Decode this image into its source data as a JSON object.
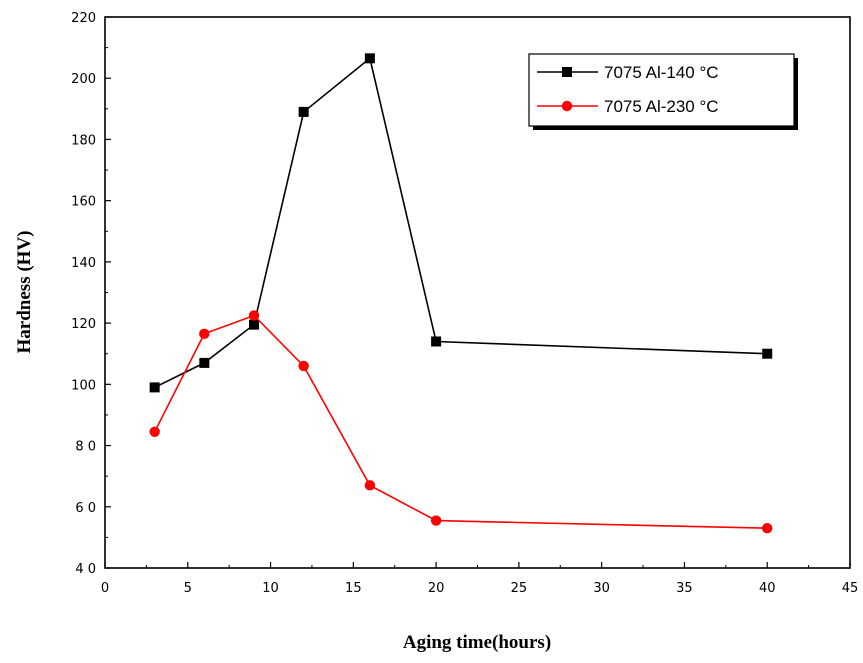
{
  "chart_data": {
    "type": "line",
    "title": "",
    "xlabel": "Aging time(hours)",
    "ylabel": "Hardness (HV)",
    "xlim": [
      0,
      45
    ],
    "ylim": [
      40,
      220
    ],
    "x_ticks": [
      0,
      5,
      10,
      15,
      20,
      25,
      30,
      35,
      40,
      45
    ],
    "x_tick_labels": [
      "0",
      "5",
      "10",
      "15",
      "20",
      "25",
      "30",
      "35",
      "40",
      "45"
    ],
    "y_ticks": [
      40,
      60,
      80,
      100,
      120,
      140,
      160,
      180,
      200,
      220
    ],
    "y_tick_labels": [
      "4 0",
      "6 0",
      "8 0",
      "100",
      "120",
      "140",
      "160",
      "180",
      "200",
      "220"
    ],
    "grid": false,
    "legend_position": "top-right",
    "series": [
      {
        "name": "7075 Al-140 °C",
        "color": "#000000",
        "marker": "square",
        "x": [
          3,
          6,
          9,
          12,
          16,
          20,
          40
        ],
        "y": [
          99,
          107,
          119.5,
          189,
          206.5,
          114,
          110
        ]
      },
      {
        "name": "7075 Al-230 °C",
        "color": "#ff0000",
        "marker": "circle",
        "x": [
          3,
          6,
          9,
          12,
          16,
          20,
          40
        ],
        "y": [
          84.5,
          116.5,
          122.5,
          106,
          67,
          55.5,
          53
        ]
      }
    ]
  }
}
